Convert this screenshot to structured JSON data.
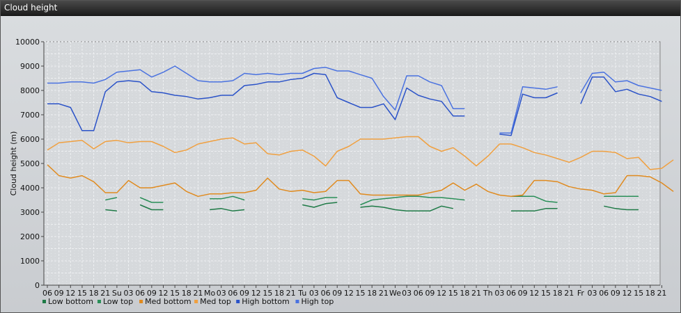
{
  "window": {
    "title": "Cloud height"
  },
  "chart_data": {
    "type": "line",
    "title": "",
    "xlabel": "",
    "ylabel": "Cloud height (m)",
    "ylim": [
      0,
      10000
    ],
    "yticks": [
      0,
      1000,
      2000,
      3000,
      4000,
      5000,
      6000,
      7000,
      8000,
      9000,
      10000
    ],
    "grid": true,
    "legend_position": "bottom-left",
    "x_tick_labels": [
      "06",
      "09",
      "12",
      "15",
      "18",
      "21",
      "Su",
      "03",
      "06",
      "09",
      "12",
      "15",
      "18",
      "21",
      "Mo",
      "03",
      "06",
      "09",
      "12",
      "15",
      "18",
      "21",
      "Tu",
      "03",
      "06",
      "09",
      "12",
      "15",
      "18",
      "21",
      "We",
      "03",
      "06",
      "09",
      "12",
      "15",
      "18",
      "21",
      "Th",
      "03",
      "06",
      "09",
      "12",
      "15",
      "18",
      "21",
      "Fr",
      "03",
      "06",
      "09",
      "12",
      "15",
      "18",
      "21"
    ],
    "x_unit": "hours from Saturday 06:00, 1 point per hour",
    "series": [
      {
        "name": "Low bottom",
        "color": "#1e7a46",
        "points": [
          [
            15,
            3100
          ],
          [
            18,
            3050
          ],
          null,
          [
            24,
            3300
          ],
          [
            27,
            3100
          ],
          [
            30,
            3100
          ],
          null,
          [
            42,
            3100
          ],
          [
            45,
            3150
          ],
          [
            48,
            3050
          ],
          [
            51,
            3100
          ],
          null,
          [
            66,
            3300
          ],
          [
            69,
            3200
          ],
          [
            72,
            3350
          ],
          [
            75,
            3400
          ],
          null,
          [
            81,
            3200
          ],
          [
            84,
            3250
          ],
          [
            87,
            3200
          ],
          [
            90,
            3100
          ],
          [
            93,
            3050
          ],
          [
            96,
            3050
          ],
          [
            99,
            3050
          ],
          [
            102,
            3250
          ],
          [
            105,
            3150
          ],
          null,
          [
            120,
            3050
          ],
          [
            123,
            3050
          ],
          [
            126,
            3050
          ],
          [
            129,
            3150
          ],
          [
            132,
            3150
          ],
          null,
          [
            144,
            3250
          ],
          [
            147,
            3150
          ],
          [
            150,
            3100
          ],
          [
            153,
            3100
          ]
        ]
      },
      {
        "name": "Low top",
        "color": "#2a8f58",
        "points": [
          [
            15,
            3500
          ],
          [
            18,
            3600
          ],
          null,
          [
            24,
            3600
          ],
          [
            27,
            3400
          ],
          [
            30,
            3400
          ],
          null,
          [
            42,
            3550
          ],
          [
            45,
            3550
          ],
          [
            48,
            3650
          ],
          [
            51,
            3500
          ],
          null,
          [
            66,
            3550
          ],
          [
            69,
            3500
          ],
          [
            72,
            3600
          ],
          [
            75,
            3600
          ],
          null,
          [
            81,
            3300
          ],
          [
            84,
            3500
          ],
          [
            87,
            3550
          ],
          [
            90,
            3600
          ],
          [
            93,
            3650
          ],
          [
            96,
            3650
          ],
          [
            99,
            3600
          ],
          [
            102,
            3600
          ],
          [
            105,
            3550
          ],
          [
            108,
            3500
          ],
          null,
          [
            120,
            3650
          ],
          [
            123,
            3650
          ],
          [
            126,
            3650
          ],
          [
            129,
            3450
          ],
          [
            132,
            3400
          ],
          null,
          [
            144,
            3650
          ],
          [
            147,
            3650
          ],
          [
            150,
            3650
          ],
          [
            153,
            3650
          ]
        ]
      },
      {
        "name": "Med bottom",
        "color": "#e08a1e",
        "points": [
          [
            0,
            4950
          ],
          [
            3,
            4500
          ],
          [
            6,
            4400
          ],
          [
            9,
            4500
          ],
          [
            12,
            4250
          ],
          [
            15,
            3800
          ],
          [
            18,
            3800
          ],
          [
            21,
            4300
          ],
          [
            24,
            4000
          ],
          [
            27,
            4000
          ],
          [
            30,
            4100
          ],
          [
            33,
            4200
          ],
          [
            36,
            3850
          ],
          [
            39,
            3650
          ],
          [
            42,
            3750
          ],
          [
            45,
            3750
          ],
          [
            48,
            3800
          ],
          [
            51,
            3800
          ],
          [
            54,
            3900
          ],
          [
            57,
            4400
          ],
          [
            60,
            3950
          ],
          [
            63,
            3850
          ],
          [
            66,
            3900
          ],
          [
            69,
            3800
          ],
          [
            72,
            3850
          ],
          [
            75,
            4300
          ],
          [
            78,
            4300
          ],
          [
            81,
            3750
          ],
          [
            84,
            3700
          ],
          [
            87,
            3700
          ],
          [
            90,
            3700
          ],
          [
            93,
            3700
          ],
          [
            96,
            3700
          ],
          [
            99,
            3800
          ],
          [
            102,
            3900
          ],
          [
            105,
            4200
          ],
          [
            108,
            3900
          ],
          [
            111,
            4150
          ],
          [
            114,
            3850
          ],
          [
            117,
            3700
          ],
          [
            120,
            3650
          ],
          [
            123,
            3700
          ],
          [
            126,
            4300
          ],
          [
            129,
            4300
          ],
          [
            132,
            4250
          ],
          [
            135,
            4050
          ],
          [
            138,
            3950
          ],
          [
            141,
            3900
          ],
          [
            144,
            3750
          ],
          [
            147,
            3800
          ],
          [
            150,
            4500
          ],
          [
            153,
            4500
          ],
          [
            156,
            4450
          ],
          [
            159,
            4200
          ],
          [
            162,
            3850
          ]
        ]
      },
      {
        "name": "Med top",
        "color": "#f0a040",
        "points": [
          [
            0,
            5550
          ],
          [
            3,
            5850
          ],
          [
            6,
            5900
          ],
          [
            9,
            5950
          ],
          [
            12,
            5600
          ],
          [
            15,
            5900
          ],
          [
            18,
            5950
          ],
          [
            21,
            5850
          ],
          [
            24,
            5900
          ],
          [
            27,
            5900
          ],
          [
            30,
            5700
          ],
          [
            33,
            5450
          ],
          [
            36,
            5550
          ],
          [
            39,
            5800
          ],
          [
            42,
            5900
          ],
          [
            45,
            6000
          ],
          [
            48,
            6050
          ],
          [
            51,
            5800
          ],
          [
            54,
            5850
          ],
          [
            57,
            5400
          ],
          [
            60,
            5350
          ],
          [
            63,
            5500
          ],
          [
            66,
            5550
          ],
          [
            69,
            5300
          ],
          [
            72,
            4900
          ],
          [
            75,
            5500
          ],
          [
            78,
            5700
          ],
          [
            81,
            6000
          ],
          [
            84,
            6000
          ],
          [
            87,
            6000
          ],
          [
            90,
            6050
          ],
          [
            93,
            6100
          ],
          [
            96,
            6100
          ],
          [
            99,
            5700
          ],
          [
            102,
            5500
          ],
          [
            105,
            5650
          ],
          [
            108,
            5300
          ],
          [
            111,
            4900
          ],
          [
            114,
            5300
          ],
          [
            117,
            5800
          ],
          [
            120,
            5800
          ],
          [
            123,
            5650
          ],
          [
            126,
            5450
          ],
          [
            129,
            5350
          ],
          [
            132,
            5200
          ],
          [
            135,
            5050
          ],
          [
            138,
            5250
          ],
          [
            141,
            5500
          ],
          [
            144,
            5500
          ],
          [
            147,
            5450
          ],
          [
            150,
            5200
          ],
          [
            153,
            5250
          ],
          [
            156,
            4750
          ],
          [
            159,
            4800
          ],
          [
            162,
            5150
          ]
        ]
      },
      {
        "name": "High bottom",
        "color": "#2a52c8",
        "points": [
          [
            0,
            7450
          ],
          [
            3,
            7450
          ],
          [
            6,
            7300
          ],
          [
            9,
            6350
          ],
          [
            12,
            6350
          ],
          [
            15,
            7950
          ],
          [
            18,
            8350
          ],
          [
            21,
            8400
          ],
          [
            24,
            8350
          ],
          [
            27,
            7950
          ],
          [
            30,
            7900
          ],
          [
            33,
            7800
          ],
          [
            36,
            7750
          ],
          [
            39,
            7650
          ],
          [
            42,
            7700
          ],
          [
            45,
            7800
          ],
          [
            48,
            7800
          ],
          [
            51,
            8200
          ],
          [
            54,
            8250
          ],
          [
            57,
            8350
          ],
          [
            60,
            8350
          ],
          [
            63,
            8450
          ],
          [
            66,
            8500
          ],
          [
            69,
            8700
          ],
          [
            72,
            8650
          ],
          [
            75,
            7700
          ],
          [
            78,
            7500
          ],
          [
            81,
            7300
          ],
          [
            84,
            7300
          ],
          [
            87,
            7450
          ],
          [
            90,
            6800
          ],
          [
            93,
            8100
          ],
          [
            96,
            7800
          ],
          [
            99,
            7650
          ],
          [
            102,
            7550
          ],
          [
            105,
            6950
          ],
          [
            108,
            6950
          ],
          null,
          [
            117,
            6200
          ],
          [
            120,
            6150
          ],
          [
            123,
            7850
          ],
          [
            126,
            7700
          ],
          [
            129,
            7700
          ],
          [
            132,
            7900
          ],
          null,
          [
            138,
            7450
          ],
          [
            141,
            8550
          ],
          [
            144,
            8550
          ],
          [
            147,
            7950
          ],
          [
            150,
            8050
          ],
          [
            153,
            7850
          ],
          [
            156,
            7750
          ],
          [
            159,
            7550
          ]
        ]
      },
      {
        "name": "High top",
        "color": "#4a72e0",
        "points": [
          [
            0,
            8300
          ],
          [
            3,
            8300
          ],
          [
            6,
            8350
          ],
          [
            9,
            8350
          ],
          [
            12,
            8300
          ],
          [
            15,
            8450
          ],
          [
            18,
            8750
          ],
          [
            21,
            8800
          ],
          [
            24,
            8850
          ],
          [
            27,
            8550
          ],
          [
            30,
            8750
          ],
          [
            33,
            9000
          ],
          [
            36,
            8700
          ],
          [
            39,
            8400
          ],
          [
            42,
            8350
          ],
          [
            45,
            8350
          ],
          [
            48,
            8400
          ],
          [
            51,
            8700
          ],
          [
            54,
            8650
          ],
          [
            57,
            8700
          ],
          [
            60,
            8650
          ],
          [
            63,
            8700
          ],
          [
            66,
            8700
          ],
          [
            69,
            8900
          ],
          [
            72,
            8950
          ],
          [
            75,
            8800
          ],
          [
            78,
            8800
          ],
          [
            81,
            8650
          ],
          [
            84,
            8500
          ],
          [
            87,
            7750
          ],
          [
            90,
            7200
          ],
          [
            93,
            8600
          ],
          [
            96,
            8600
          ],
          [
            99,
            8350
          ],
          [
            102,
            8200
          ],
          [
            105,
            7250
          ],
          [
            108,
            7250
          ],
          null,
          [
            117,
            6250
          ],
          [
            120,
            6250
          ],
          [
            123,
            8150
          ],
          [
            126,
            8100
          ],
          [
            129,
            8050
          ],
          [
            132,
            8150
          ],
          null,
          [
            138,
            7900
          ],
          [
            141,
            8700
          ],
          [
            144,
            8750
          ],
          [
            147,
            8350
          ],
          [
            150,
            8400
          ],
          [
            153,
            8200
          ],
          [
            156,
            8100
          ],
          [
            159,
            8000
          ]
        ]
      }
    ]
  }
}
